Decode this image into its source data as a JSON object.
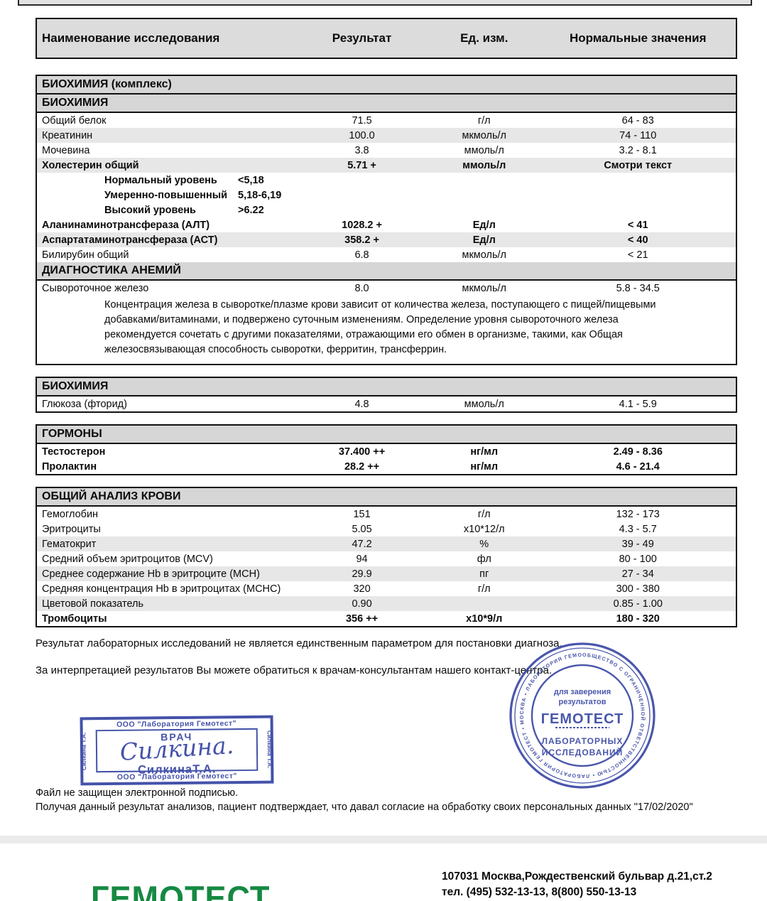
{
  "report": {
    "columns": {
      "name": "Наименование исследования",
      "result": "Результат",
      "unit": "Ед. изм.",
      "norm": "Нормальные значения"
    },
    "blocks": [
      {
        "rows": [
          {
            "type": "section",
            "label": "БИОХИМИЯ (комплекс)"
          },
          {
            "type": "section",
            "label": "БИОХИМИЯ"
          },
          {
            "type": "data",
            "name": "Общий белок",
            "result": "71.5",
            "unit": "г/л",
            "norm": "64 - 83",
            "shaded": false,
            "bold": false
          },
          {
            "type": "data",
            "name": "Креатинин",
            "result": "100.0",
            "unit": "мкмоль/л",
            "norm": "74 - 110",
            "shaded": true,
            "bold": false
          },
          {
            "type": "data",
            "name": "Мочевина",
            "result": "3.8",
            "unit": "ммоль/л",
            "norm": "3.2 - 8.1",
            "shaded": false,
            "bold": false
          },
          {
            "type": "data",
            "name": "Холестерин общий",
            "result": "5.71 +",
            "unit": "ммоль/л",
            "norm": "Смотри текст",
            "shaded": true,
            "bold": true
          },
          {
            "type": "sub",
            "label": "Нормальный уровень",
            "value": "<5,18"
          },
          {
            "type": "sub",
            "label": "Умеренно-повышенный",
            "value": "5,18-6,19"
          },
          {
            "type": "sub",
            "label": "Высокий уровень",
            "value": ">6.22"
          },
          {
            "type": "data",
            "name": "Аланинаминотрансфераза (АЛТ)",
            "result": "1028.2 +",
            "unit": "Ед/л",
            "norm": "< 41",
            "shaded": false,
            "bold": true
          },
          {
            "type": "data",
            "name": "Аспартатаминотрансфераза (АСТ)",
            "result": "358.2 +",
            "unit": "Ед/л",
            "norm": "< 40",
            "shaded": true,
            "bold": true
          },
          {
            "type": "data",
            "name": "Билирубин общий",
            "result": "6.8",
            "unit": "мкмоль/л",
            "norm": "< 21",
            "shaded": false,
            "bold": false
          },
          {
            "type": "section",
            "label": "ДИАГНОСТИКА АНЕМИЙ"
          },
          {
            "type": "data",
            "name": "Сывороточное железо",
            "result": "8.0",
            "unit": "мкмоль/л",
            "norm": "5.8 - 34.5",
            "shaded": false,
            "bold": false
          },
          {
            "type": "note",
            "text": "Концентрация железа в сыворотке/плазме крови зависит от количества железа, поступающего с пищей/пищевыми добавками/витаминами, и подвержено суточным изменениям. Определение уровня сывороточного железа рекомендуется сочетать с другими показателями, отражающими его обмен в организме, такими, как Общая железосвязывающая способность сыворотки, ферритин, трансферрин."
          }
        ]
      },
      {
        "rows": [
          {
            "type": "section",
            "label": "БИОХИМИЯ"
          },
          {
            "type": "data",
            "name": "Глюкоза (фторид)",
            "result": "4.8",
            "unit": "ммоль/л",
            "norm": "4.1 - 5.9",
            "shaded": false,
            "bold": false
          }
        ]
      },
      {
        "rows": [
          {
            "type": "section",
            "label": "ГОРМОНЫ"
          },
          {
            "type": "data",
            "name": "Тестостерон",
            "result": "37.400 ++",
            "unit": "нг/мл",
            "norm": "2.49 - 8.36",
            "shaded": false,
            "bold": true
          },
          {
            "type": "data",
            "name": "Пролактин",
            "result": "28.2 ++",
            "unit": "нг/мл",
            "norm": "4.6 - 21.4",
            "shaded": false,
            "bold": true
          }
        ]
      },
      {
        "rows": [
          {
            "type": "section",
            "label": "ОБЩИЙ АНАЛИЗ КРОВИ"
          },
          {
            "type": "data",
            "name": "Гемоглобин",
            "result": "151",
            "unit": "г/л",
            "norm": "132 - 173",
            "shaded": false,
            "bold": false
          },
          {
            "type": "data",
            "name": "Эритроциты",
            "result": "5.05",
            "unit": "х10*12/л",
            "norm": "4.3 - 5.7",
            "shaded": false,
            "bold": false
          },
          {
            "type": "data",
            "name": "Гематокрит",
            "result": "47.2",
            "unit": "%",
            "norm": "39 - 49",
            "shaded": true,
            "bold": false
          },
          {
            "type": "data",
            "name": "Средний объем эритроцитов (MCV)",
            "result": "94",
            "unit": "фл",
            "norm": "80 - 100",
            "shaded": false,
            "bold": false
          },
          {
            "type": "data",
            "name": "Среднее содержание Hb в эритроците (MCH)",
            "result": "29.9",
            "unit": "пг",
            "norm": "27 - 34",
            "shaded": true,
            "bold": false
          },
          {
            "type": "data",
            "name": "Средняя концентрация Hb в эритроцитах (MCHC)",
            "result": "320",
            "unit": "г/л",
            "norm": "300 - 380",
            "shaded": false,
            "bold": false
          },
          {
            "type": "data",
            "name": "Цветовой показатель",
            "result": "0.90",
            "unit": "",
            "norm": "0.85 - 1.00",
            "shaded": true,
            "bold": false
          },
          {
            "type": "data",
            "name": "Тромбоциты",
            "result": "356 ++",
            "unit": "х10*9/л",
            "norm": "180 - 320",
            "shaded": false,
            "bold": true
          }
        ]
      }
    ],
    "footnotes": [
      "Результат лабораторных исследований не является единственным параметром для постановки диагноза.",
      "За интерпретацией результатов Вы можете обратиться к врачам-консультантам нашего контакт-центра."
    ]
  },
  "doctor_stamp": {
    "org_top": "ООО \"Лаборатория Гемотест\"",
    "role": "ВРАЧ",
    "signature": "Силкина.",
    "name": "СилкинаТ.А.",
    "org_bottom": "ООО \"Лаборатория Гемотест\"",
    "side_left": "Силкина Т.А.",
    "side_right": "Силкина Т.А."
  },
  "round_stamp": {
    "ring_text": "ОБЩЕСТВО С ОГРАНИЧЕННОЙ ОТВЕТСТВЕННОСТЬЮ • ЛАБОРАТОРИЯ ГЕМОТЕСТ • МОСКВА • ЛАБОРАТОРИЯ ГЕМОТЕСТ •",
    "purpose_line1": "для заверения",
    "purpose_line2": "результатов",
    "brand": "ГЕМОТЕСТ",
    "line1": "ЛАБОРАТОРНЫХ",
    "line2": "ИССЛЕДОВАНИЙ"
  },
  "footer": {
    "file_note": "Файл не защищен электронной подписью.",
    "consent": "Получая данный результат анализов, пациент подтверждает, что давал согласие на обработку своих персональных данных \"17/02/2020\"",
    "logo": "ГЕМОТЕСТ",
    "address": "107031 Москва,Рождественский бульвар д.21,ст.2",
    "phone": "тел. (495) 532-13-13, 8(800) 550-13-13"
  },
  "colors": {
    "stamp_blue": "#3b49a6",
    "logo_green": "#168942",
    "header_gray": "#dcdcdc",
    "stripe_gray": "#e7e7e7"
  }
}
